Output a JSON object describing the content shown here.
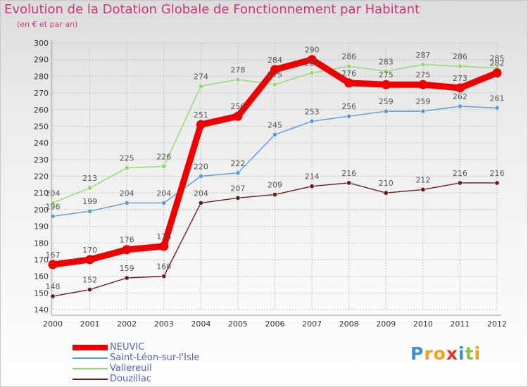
{
  "title": "Evolution de la Dotation Globale de Fonctionnement par Habitant",
  "subtitle": "(en € et par an)",
  "colors": {
    "title": "#c8367a",
    "axis_text": "#333333",
    "label_text": "#555555",
    "legend_text": "#4f5fd8",
    "grid": "#c0c0c0"
  },
  "chart_data": {
    "type": "line",
    "title": "Evolution de la Dotation Globale de Fonctionnement par Habitant",
    "subtitle": "(en € et par an)",
    "xlabel": "",
    "ylabel": "",
    "ylim": [
      140,
      300
    ],
    "yticks": [
      140,
      150,
      160,
      170,
      180,
      190,
      200,
      210,
      220,
      230,
      240,
      250,
      260,
      270,
      280,
      290,
      300
    ],
    "x": [
      "2000",
      "2001",
      "2002",
      "2003",
      "2004",
      "2005",
      "2006",
      "2007",
      "2008",
      "2009",
      "2010",
      "2011",
      "2012"
    ],
    "grid": true,
    "legend_position": "bottom-left",
    "series": [
      {
        "name": "NEUVIC",
        "color": "#ee0000",
        "emphasis": true,
        "values": [
          167,
          170,
          176,
          178,
          251,
          256,
          284,
          290,
          276,
          275,
          275,
          273,
          282
        ]
      },
      {
        "name": "Saint-Léon-sur-l'Isle",
        "color": "#5b9bd5",
        "emphasis": false,
        "values": [
          196,
          199,
          204,
          204,
          220,
          222,
          245,
          253,
          256,
          259,
          259,
          262,
          261
        ]
      },
      {
        "name": "Vallereuil",
        "color": "#8ddb6a",
        "emphasis": false,
        "values": [
          204,
          213,
          225,
          226,
          274,
          278,
          275,
          282,
          286,
          283,
          287,
          286,
          285
        ]
      },
      {
        "name": "Douzillac",
        "color": "#6b1d1d",
        "emphasis": false,
        "values": [
          148,
          152,
          159,
          160,
          204,
          207,
          209,
          214,
          216,
          210,
          212,
          216,
          216
        ]
      }
    ]
  },
  "logo": {
    "text": "Proxiti",
    "letters": [
      {
        "ch": "P",
        "color": "#3a8fd8"
      },
      {
        "ch": "r",
        "color": "#f0a020"
      },
      {
        "ch": "o",
        "color": "#f0a020"
      },
      {
        "ch": "x",
        "color": "#e83a2a"
      },
      {
        "ch": "i",
        "color": "#3a8fd8"
      },
      {
        "ch": "t",
        "color": "#8bc34a"
      },
      {
        "ch": "i",
        "color": "#f0a020"
      }
    ]
  }
}
